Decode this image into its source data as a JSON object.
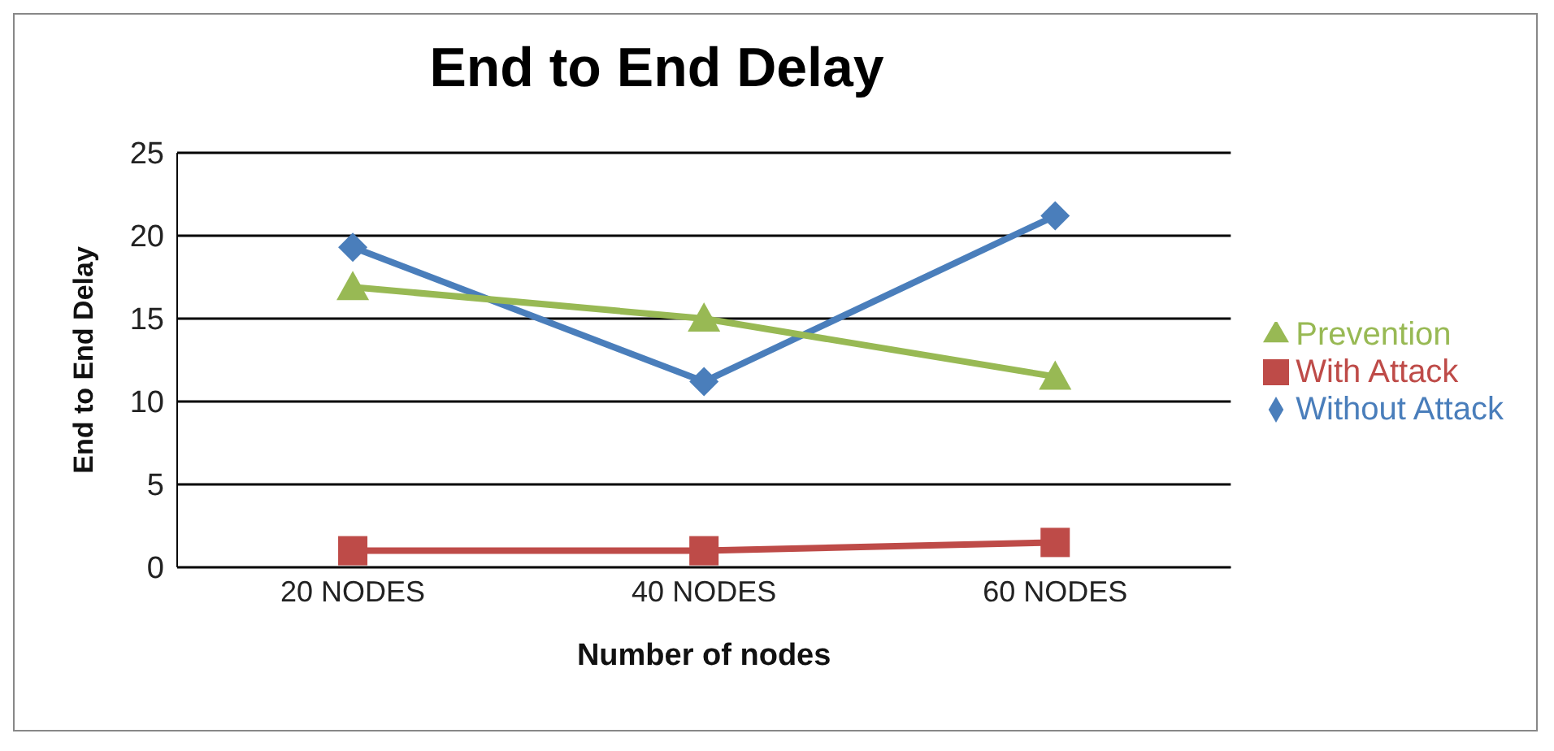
{
  "chart_data": {
    "type": "line",
    "title": "End to End Delay",
    "xlabel": "Number of nodes",
    "ylabel": "End to End Delay",
    "categories": [
      "20 NODES",
      "40 NODES",
      "60 NODES"
    ],
    "series": [
      {
        "name": "Without Attack",
        "color": "#4a7ebb",
        "marker": "diamond",
        "values": [
          19.3,
          11.2,
          21.2
        ]
      },
      {
        "name": "With Attack",
        "color": "#be4b48",
        "marker": "square",
        "values": [
          1.0,
          1.0,
          1.5
        ]
      },
      {
        "name": "Prevention",
        "color": "#98b954",
        "marker": "triangle",
        "values": [
          16.9,
          15.0,
          11.5
        ]
      }
    ],
    "ylim": [
      0,
      25
    ],
    "yticks": [
      0,
      5,
      10,
      15,
      20,
      25
    ],
    "grid": "y",
    "legend": "right"
  }
}
